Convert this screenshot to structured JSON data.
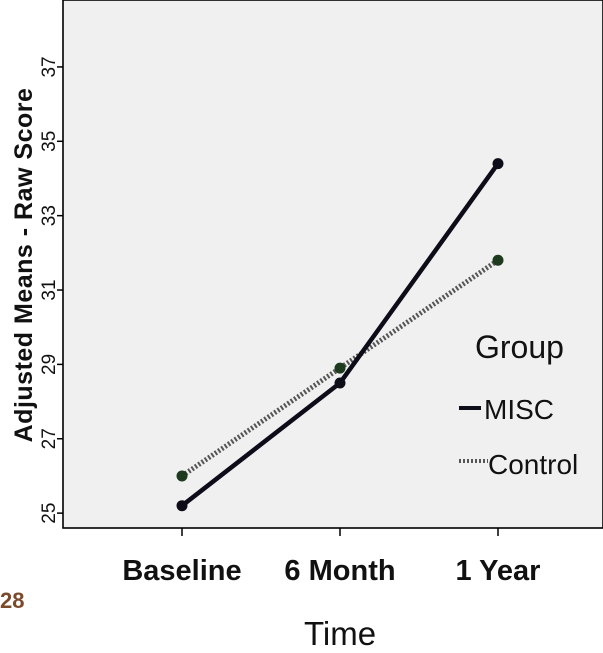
{
  "chart_data": {
    "type": "line",
    "title": "",
    "xlabel": "Time",
    "ylabel": "Adjusted Means - Raw Score",
    "categories": [
      "Baseline",
      "6 Month",
      "1 Year"
    ],
    "ylim": [
      24.6,
      38.8
    ],
    "yticks": [
      25,
      27,
      29,
      31,
      33,
      35,
      37
    ],
    "grid": false,
    "legend": {
      "title": "Group",
      "position": "right"
    },
    "series": [
      {
        "name": "MISC",
        "values": [
          25.2,
          28.5,
          34.4
        ],
        "color": "#0d0d1a",
        "style": "solid"
      },
      {
        "name": "Control",
        "values": [
          26.0,
          28.9,
          31.8
        ],
        "color": "#555555",
        "style": "dotted",
        "marker_color": "#1e3a1e"
      }
    ]
  },
  "page": {
    "slide_number": "28"
  }
}
